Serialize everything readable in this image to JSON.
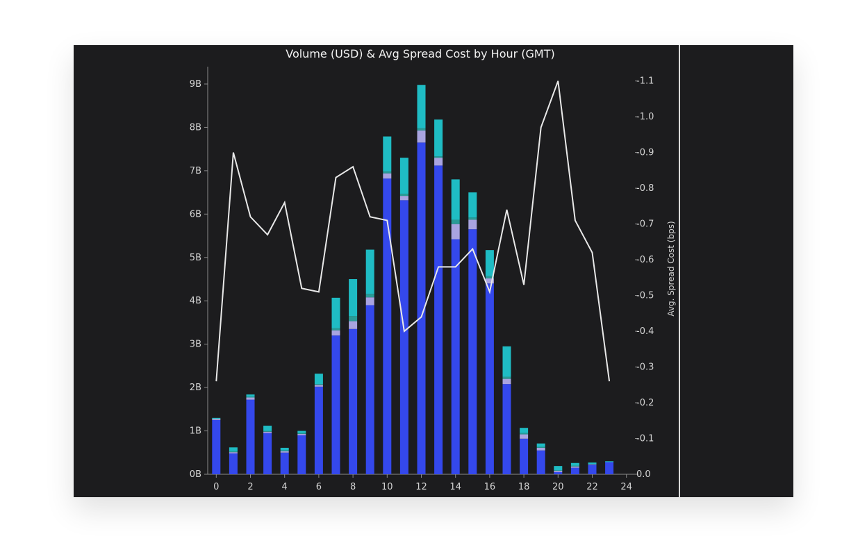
{
  "chart_data": {
    "type": "bar",
    "title": "Volume (USD) & Avg Spread Cost by Hour (GMT)",
    "y2label": "Avg. Spread Cost (bps)",
    "x": [
      0,
      1,
      2,
      3,
      4,
      5,
      6,
      7,
      8,
      9,
      10,
      11,
      12,
      13,
      14,
      15,
      16,
      17,
      18,
      19,
      20,
      21,
      22,
      23
    ],
    "x_ticks": [
      "0",
      "2",
      "4",
      "6",
      "8",
      "10",
      "12",
      "14",
      "16",
      "18",
      "20",
      "22",
      "24"
    ],
    "x_tick_values": [
      0,
      2,
      4,
      6,
      8,
      10,
      12,
      14,
      16,
      18,
      20,
      22,
      24
    ],
    "xlim": [
      -0.5,
      24.5
    ],
    "y_ticks": [
      "0B",
      "1B",
      "2B",
      "3B",
      "4B",
      "5B",
      "6B",
      "7B",
      "8B",
      "9B"
    ],
    "y_tick_values": [
      0,
      1,
      2,
      3,
      4,
      5,
      6,
      7,
      8,
      9
    ],
    "ylim": [
      0,
      9.4
    ],
    "y2_ticks": [
      "0.0",
      "-0.1",
      "-0.2",
      "-0.3",
      "-0.4",
      "-0.5",
      "-0.6",
      "-0.7",
      "-0.8",
      "-0.9",
      "-1.0",
      "-1.1"
    ],
    "y2_tick_values": [
      0,
      -0.1,
      -0.2,
      -0.3,
      -0.4,
      -0.5,
      -0.6,
      -0.7,
      -0.8,
      -0.9,
      -1.0,
      -1.1
    ],
    "y2lim": [
      0,
      -1.14
    ],
    "series": [
      {
        "color": "#3448ec",
        "values": [
          1.25,
          0.48,
          1.72,
          0.95,
          0.5,
          0.9,
          2.02,
          3.2,
          3.35,
          3.9,
          6.82,
          6.32,
          7.65,
          7.12,
          5.42,
          5.65,
          4.4,
          2.08,
          0.82,
          0.55,
          0.05,
          0.15,
          0.22,
          0.28
        ]
      },
      {
        "color": "#a9a4e0",
        "values": [
          0.03,
          0.03,
          0.05,
          0.03,
          0.03,
          0.03,
          0.04,
          0.12,
          0.18,
          0.18,
          0.12,
          0.1,
          0.28,
          0.18,
          0.35,
          0.22,
          0.12,
          0.12,
          0.1,
          0.06,
          0.03,
          0.03,
          0.01,
          0.0
        ]
      },
      {
        "color": "#2a9b96",
        "values": [
          0.0,
          0.02,
          0.02,
          0.02,
          0.02,
          0.02,
          0.02,
          0.05,
          0.12,
          0.08,
          0.05,
          0.05,
          0.05,
          0.03,
          0.1,
          0.05,
          0.05,
          0.05,
          0.03,
          0.02,
          0.01,
          0.02,
          0.01,
          0.0
        ]
      },
      {
        "color": "#1fbcc4",
        "values": [
          0.02,
          0.09,
          0.05,
          0.12,
          0.06,
          0.05,
          0.24,
          0.7,
          0.85,
          1.02,
          0.8,
          0.83,
          1.0,
          0.85,
          0.93,
          0.58,
          0.6,
          0.7,
          0.12,
          0.08,
          0.1,
          0.06,
          0.03,
          0.02
        ]
      }
    ],
    "line": {
      "color": "#e8e8e8",
      "values": [
        -0.26,
        -0.9,
        -0.72,
        -0.67,
        -0.76,
        -0.52,
        -0.51,
        -0.83,
        -0.86,
        -0.72,
        -0.71,
        -0.4,
        -0.44,
        -0.58,
        -0.58,
        -0.63,
        -0.51,
        -0.74,
        -0.53,
        -0.97,
        -1.1,
        -0.71,
        -0.62,
        -0.26
      ]
    },
    "colors": {
      "background": "#1c1c1e",
      "axis": "#8a8a8a",
      "text": "#d4d4d4"
    }
  }
}
